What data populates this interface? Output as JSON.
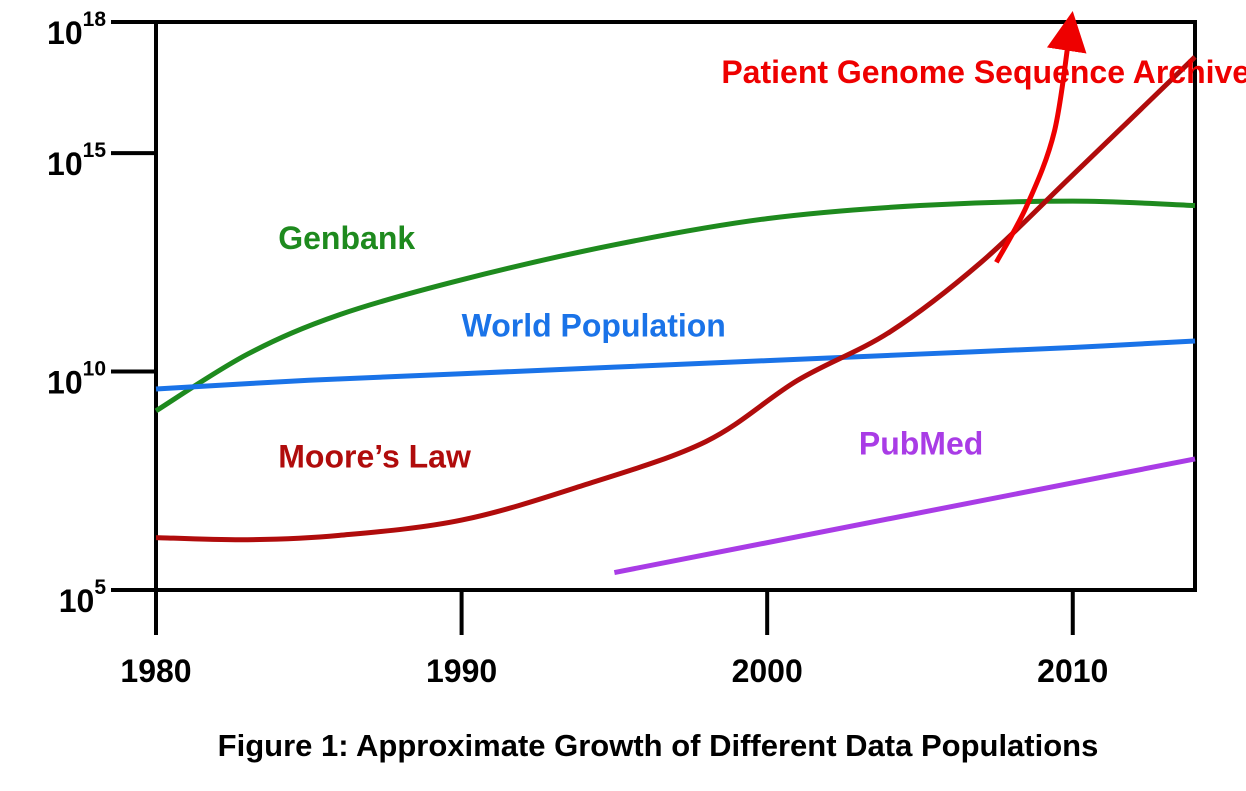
{
  "chart_data": {
    "type": "line",
    "title": "Figure 1: Approximate Growth of Different Data Populations",
    "xlabel": "",
    "ylabel": "",
    "xlim": [
      1980,
      2014
    ],
    "ylim": [
      5,
      18
    ],
    "y_scale": "log10",
    "x_ticks": [
      1980,
      1990,
      2000,
      2010
    ],
    "y_ticks": [
      {
        "exp": 5,
        "base": "10",
        "sup": "5"
      },
      {
        "exp": 10,
        "base": "10",
        "sup": "10"
      },
      {
        "exp": 15,
        "base": "10",
        "sup": "15"
      },
      {
        "exp": 18,
        "base": "10",
        "sup": "18"
      }
    ],
    "grid": false,
    "legend": "none",
    "series": [
      {
        "id": "genbank",
        "name": "Genbank",
        "color": "#1e8a1e",
        "label_at": [
          1984,
          12.8
        ],
        "points": [
          [
            1980,
            9.1
          ],
          [
            1983,
            10.4
          ],
          [
            1986,
            11.3
          ],
          [
            1990,
            12.1
          ],
          [
            1995,
            12.9
          ],
          [
            2000,
            13.5
          ],
          [
            2005,
            13.8
          ],
          [
            2010,
            13.9
          ],
          [
            2014,
            13.8
          ]
        ]
      },
      {
        "id": "world-population",
        "name": "World Population",
        "color": "#1a73e8",
        "label_at": [
          1990,
          10.8
        ],
        "points": [
          [
            1980,
            9.6
          ],
          [
            1985,
            9.8
          ],
          [
            1990,
            9.95
          ],
          [
            1995,
            10.1
          ],
          [
            2000,
            10.25
          ],
          [
            2005,
            10.4
          ],
          [
            2010,
            10.55
          ],
          [
            2014,
            10.7
          ]
        ]
      },
      {
        "id": "moores-law",
        "name": "Moore’s Law",
        "color": "#b00c0c",
        "label_at": [
          1984,
          7.8
        ],
        "points": [
          [
            1980,
            6.2
          ],
          [
            1983,
            6.15
          ],
          [
            1986,
            6.25
          ],
          [
            1990,
            6.6
          ],
          [
            1994,
            7.4
          ],
          [
            1998,
            8.4
          ],
          [
            2001,
            9.8
          ],
          [
            2004,
            10.9
          ],
          [
            2007,
            12.5
          ],
          [
            2010,
            14.5
          ],
          [
            2014,
            17.2
          ]
        ]
      },
      {
        "id": "pubmed",
        "name": "PubMed",
        "color": "#a93ce6",
        "label_at": [
          2003,
          8.1
        ],
        "points": [
          [
            1995,
            5.4
          ],
          [
            2014,
            8.0
          ]
        ]
      },
      {
        "id": "patient-genome",
        "name": "Patient Genome Sequence Archive",
        "color": "#ee0000",
        "label_at": [
          1998.5,
          16.6
        ],
        "arrow": true,
        "points": [
          [
            2007.5,
            12.5
          ],
          [
            2008.5,
            13.8
          ],
          [
            2009.4,
            15.5
          ],
          [
            2009.9,
            17.8
          ]
        ]
      }
    ]
  }
}
